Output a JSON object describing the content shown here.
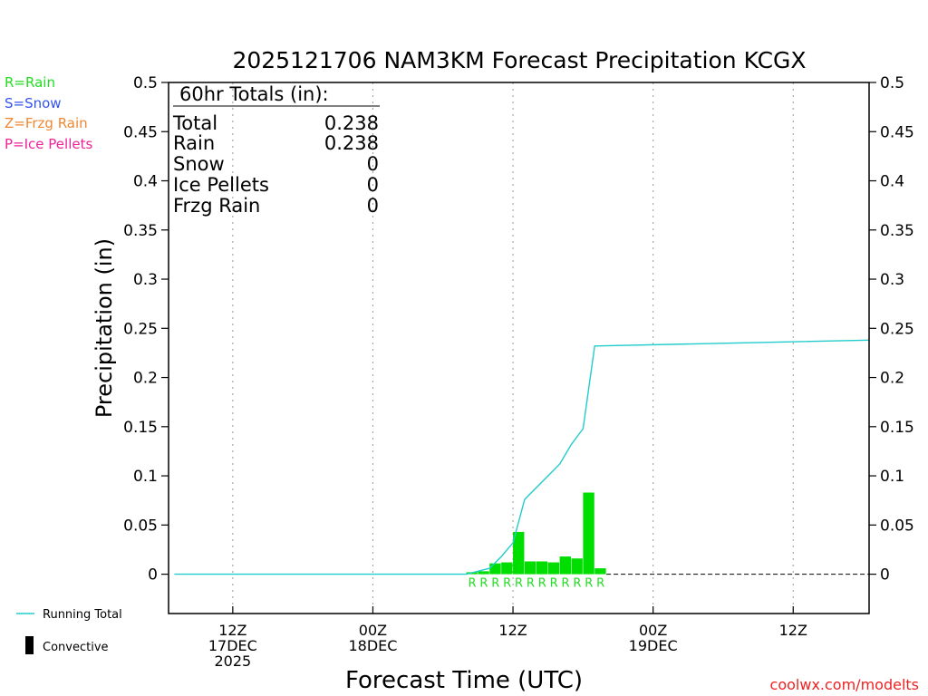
{
  "chart_data": {
    "type": "bar",
    "title": "2025121706 NAM3KM Forecast Precipitation KCGX",
    "xlabel": "Forecast Time (UTC)",
    "ylabel": "Precipitation (in)",
    "ylim": [
      -0.04,
      0.5
    ],
    "xlim_hours": [
      -5.5,
      54.5
    ],
    "yticks": [
      {
        "v": 0.5,
        "label": "0.5"
      },
      {
        "v": 0.45,
        "label": "0.45"
      },
      {
        "v": 0.4,
        "label": "0.4"
      },
      {
        "v": 0.35,
        "label": "0.35"
      },
      {
        "v": 0.3,
        "label": "0.3"
      },
      {
        "v": 0.25,
        "label": "0.25"
      },
      {
        "v": 0.2,
        "label": "0.2"
      },
      {
        "v": 0.15,
        "label": "0.15"
      },
      {
        "v": 0.1,
        "label": "0.1"
      },
      {
        "v": 0.05,
        "label": "0.05"
      },
      {
        "v": 0,
        "label": "0"
      }
    ],
    "xticks": [
      {
        "h": 0,
        "lines": [
          "12Z",
          "17DEC",
          "2025"
        ]
      },
      {
        "h": 12,
        "lines": [
          "00Z",
          "18DEC"
        ]
      },
      {
        "h": 24,
        "lines": [
          "12Z"
        ]
      },
      {
        "h": 36,
        "lines": [
          "00Z",
          "19DEC"
        ]
      },
      {
        "h": 48,
        "lines": [
          "12Z"
        ]
      }
    ],
    "bars": [
      {
        "h": 20.5,
        "value": 0.002,
        "type": "R"
      },
      {
        "h": 21.5,
        "value": 0.003,
        "type": "R"
      },
      {
        "h": 22.5,
        "value": 0.011,
        "type": "R"
      },
      {
        "h": 23.5,
        "value": 0.012,
        "type": "R"
      },
      {
        "h": 24.5,
        "value": 0.043,
        "type": "R"
      },
      {
        "h": 25.5,
        "value": 0.013,
        "type": "R"
      },
      {
        "h": 26.5,
        "value": 0.013,
        "type": "R"
      },
      {
        "h": 27.5,
        "value": 0.012,
        "type": "R"
      },
      {
        "h": 28.5,
        "value": 0.018,
        "type": "R"
      },
      {
        "h": 29.5,
        "value": 0.016,
        "type": "R"
      },
      {
        "h": 30.5,
        "value": 0.083,
        "type": "R"
      },
      {
        "h": 31.5,
        "value": 0.006,
        "type": "R"
      }
    ],
    "running_total": {
      "name": "Running Total",
      "hours": [
        -5,
        20,
        22,
        23,
        24,
        25,
        26,
        27,
        28,
        29,
        30,
        31,
        54.5
      ],
      "values": [
        0,
        0,
        0.006,
        0.018,
        0.032,
        0.076,
        0.088,
        0.1,
        0.112,
        0.132,
        0.148,
        0.232,
        0.238
      ]
    },
    "zero_line_dashed_from_hour": 32
  },
  "totals": {
    "header": "60hr Totals (in):",
    "rows": [
      {
        "label": "Total",
        "value": "0.238"
      },
      {
        "label": "Rain",
        "value": "0.238"
      },
      {
        "label": "Snow",
        "value": "0"
      },
      {
        "label": "Ice Pellets",
        "value": "0"
      },
      {
        "label": "Frzg Rain",
        "value": "0"
      }
    ]
  },
  "legend_types": [
    {
      "text": "R=Rain",
      "color": "#22dd22"
    },
    {
      "text": "S=Snow",
      "color": "#3355ee"
    },
    {
      "text": "Z=Frzg Rain",
      "color": "#ee8833"
    },
    {
      "text": "P=Ice Pellets",
      "color": "#ee2299"
    }
  ],
  "legend_bottom": {
    "running_total": "Running Total",
    "convective": "Convective"
  },
  "credit": "coolwx.com/modelts",
  "colors": {
    "bar": "#00dd00",
    "line": "#22cccc",
    "credit": "#ee2222",
    "axis": "#000000",
    "grid": "#999999"
  }
}
